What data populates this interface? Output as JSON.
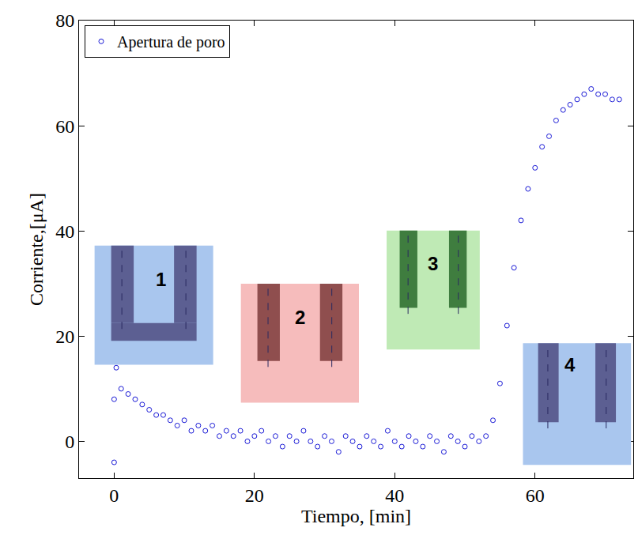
{
  "chart_data": {
    "type": "scatter",
    "x_label": "Tiempo, [min]",
    "y_label": "Corriente,[μA]",
    "xlim": [
      -5,
      74
    ],
    "ylim": [
      -7,
      80
    ],
    "xticks": [
      0,
      20,
      40,
      60
    ],
    "yticks": [
      0,
      20,
      40,
      60,
      80
    ],
    "grid": false,
    "legend": "upper left",
    "annotations": [
      "1",
      "2",
      "3",
      "4"
    ],
    "series": [
      {
        "name": "Apertura de poro",
        "color": "#1a1ad6",
        "marker": "circle-open",
        "x": [
          0,
          0,
          0.3,
          1,
          2,
          3,
          4,
          5,
          6,
          7,
          8,
          9,
          10,
          11,
          12,
          13,
          14,
          15,
          16,
          17,
          18,
          19,
          20,
          21,
          22,
          23,
          24,
          25,
          26,
          27,
          28,
          29,
          30,
          31,
          32,
          33,
          34,
          35,
          36,
          37,
          38,
          39,
          40,
          41,
          42,
          43,
          44,
          45,
          46,
          47,
          48,
          49,
          50,
          51,
          52,
          53,
          54,
          55,
          56,
          57,
          58,
          59,
          60,
          61,
          62,
          63,
          64,
          65,
          66,
          67,
          68,
          69,
          70,
          71,
          72
        ],
        "values": [
          -4,
          8,
          14,
          10,
          9,
          8,
          7,
          6,
          5,
          5,
          4,
          3,
          4,
          2,
          3,
          2,
          3,
          1,
          2,
          1,
          2,
          0,
          1,
          2,
          0,
          1,
          -1,
          1,
          0,
          2,
          0,
          -1,
          1,
          0,
          -2,
          1,
          0,
          -1,
          1,
          0,
          -1,
          2,
          0,
          -1,
          1,
          0,
          -1,
          1,
          0,
          -2,
          1,
          0,
          -1,
          1,
          0,
          1,
          4,
          11,
          22,
          33,
          42,
          48,
          52,
          56,
          58,
          61,
          63,
          64,
          65,
          66,
          67,
          66,
          66,
          65,
          65
        ]
      }
    ]
  }
}
